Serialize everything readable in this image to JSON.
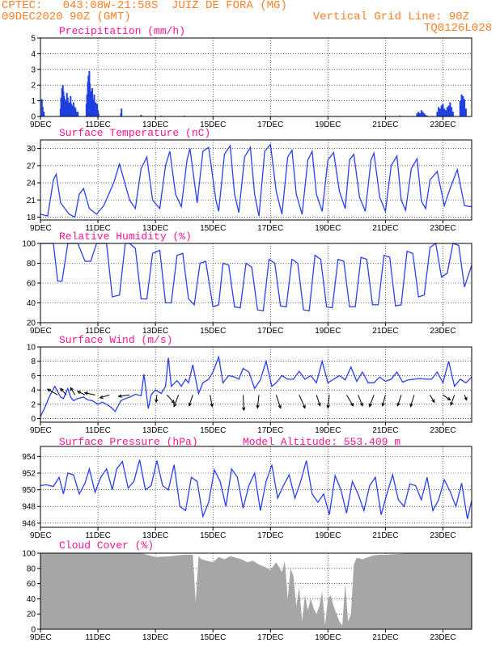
{
  "header": {
    "left_line1": "CPTEC:   043:08W-21:58S  JUIZ DE FORA (MG)",
    "left_line2": "09DEC2020 90Z (GMT)",
    "right_line1": "Vertical Grid Line: 90Z",
    "right_line2": "TQ0126L028"
  },
  "colors": {
    "header": "#ff7f27",
    "panel_title": "#ff1493",
    "series": "#2a3ff0",
    "precip_bar": "#1f3fe0",
    "cloud_fill": "#a6a6a6",
    "wind_arrow": "#000000"
  },
  "x_axis": {
    "tick_labels": [
      "9DEC",
      "11DEC",
      "13DEC",
      "15DEC",
      "17DEC",
      "19DEC",
      "21DEC",
      "23DEC"
    ],
    "tick_days": [
      0,
      2,
      4,
      6,
      8,
      10,
      12,
      14
    ],
    "range_days": [
      0,
      15
    ],
    "grid": true
  },
  "chart_data": [
    {
      "type": "bar",
      "title": "Precipitation (mm/h)",
      "ylim": [
        0,
        5
      ],
      "y_ticks": [
        0,
        1,
        2,
        3,
        4,
        5
      ],
      "x": [
        0.05,
        0.08,
        0.12,
        0.7,
        0.72,
        0.75,
        0.78,
        0.8,
        0.82,
        0.85,
        0.87,
        0.9,
        0.92,
        0.95,
        0.97,
        1.0,
        1.02,
        1.05,
        1.07,
        1.1,
        1.12,
        1.15,
        1.17,
        1.2,
        1.22,
        1.25,
        1.28,
        1.3,
        1.6,
        1.62,
        1.65,
        1.67,
        1.7,
        1.72,
        1.75,
        1.77,
        1.8,
        1.82,
        1.85,
        1.87,
        1.9,
        1.92,
        1.95,
        1.97,
        2.0,
        2.02,
        2.8,
        2.82,
        3.5,
        4.2,
        5.0,
        12.5,
        13.1,
        13.15,
        13.2,
        13.25,
        13.3,
        13.35,
        13.4,
        13.45,
        13.8,
        13.85,
        13.9,
        13.95,
        14.0,
        14.05,
        14.1,
        14.15,
        14.2,
        14.25,
        14.3,
        14.35,
        14.6,
        14.65,
        14.7,
        14.75,
        14.8
      ],
      "values": [
        1.1,
        0.6,
        0.3,
        0.5,
        1.2,
        1.8,
        2.0,
        1.6,
        1.3,
        1.1,
        0.8,
        1.0,
        1.5,
        1.2,
        0.9,
        0.6,
        0.9,
        1.3,
        0.8,
        0.5,
        0.7,
        0.9,
        0.4,
        0.6,
        0.5,
        0.3,
        0.2,
        0.3,
        0.8,
        1.4,
        2.2,
        2.6,
        2.9,
        2.1,
        1.6,
        1.3,
        1.8,
        1.1,
        0.9,
        1.4,
        0.7,
        0.9,
        0.5,
        0.8,
        0.4,
        0.2,
        0.2,
        0.5,
        0.1,
        0.05,
        0.05,
        0.05,
        0.2,
        0.3,
        0.2,
        0.4,
        0.3,
        0.2,
        0.1,
        0.05,
        0.3,
        0.6,
        0.5,
        0.7,
        0.8,
        0.5,
        0.4,
        0.6,
        0.7,
        0.9,
        0.6,
        0.3,
        1.0,
        1.4,
        1.3,
        1.1,
        0.5
      ]
    },
    {
      "type": "line",
      "title": "Surface Temperature (nC)",
      "ylim": [
        17.5,
        31.5
      ],
      "y_ticks": [
        18,
        21,
        24,
        27,
        30
      ],
      "x": [
        0,
        0.25,
        0.45,
        0.55,
        0.7,
        1.0,
        1.2,
        1.35,
        1.5,
        1.7,
        1.95,
        2.2,
        2.55,
        2.75,
        3.1,
        3.3,
        3.5,
        3.7,
        3.9,
        4.15,
        4.35,
        4.5,
        4.7,
        4.9,
        5.1,
        5.2,
        5.45,
        5.65,
        5.85,
        6.1,
        6.2,
        6.4,
        6.6,
        6.75,
        6.9,
        7.1,
        7.3,
        7.45,
        7.6,
        7.8,
        8.0,
        8.2,
        8.4,
        8.6,
        8.75,
        8.9,
        9.1,
        9.3,
        9.45,
        9.6,
        9.8,
        10.0,
        10.2,
        10.4,
        10.6,
        10.75,
        10.9,
        11.1,
        11.3,
        11.5,
        11.6,
        11.8,
        12.0,
        12.2,
        12.4,
        12.55,
        12.7,
        12.9,
        13.1,
        13.25,
        13.4,
        13.55,
        13.8,
        14.05,
        14.25,
        14.5,
        14.75,
        15.0
      ],
      "series": [
        {
          "values": [
            18.5,
            18.2,
            24.5,
            25.5,
            20.5,
            18.5,
            18.0,
            22.0,
            23.0,
            19.5,
            18.5,
            20.0,
            24.0,
            27.3,
            21.0,
            19.5,
            26.5,
            28.5,
            21.0,
            19.5,
            27.0,
            29.5,
            22.0,
            19.8,
            28.0,
            30.0,
            20.5,
            29.5,
            30.2,
            21.0,
            19.0,
            29.0,
            30.5,
            22.0,
            18.8,
            28.5,
            30.2,
            22.0,
            18.2,
            29.5,
            30.7,
            22.5,
            18.5,
            28.5,
            29.7,
            22.0,
            18.5,
            28.0,
            29.5,
            22.0,
            19.0,
            28.0,
            29.3,
            22.5,
            19.5,
            28.0,
            29.0,
            21.5,
            19.0,
            28.0,
            29.2,
            21.5,
            19.0,
            27.0,
            28.7,
            21.0,
            19.2,
            26.5,
            28.2,
            20.8,
            19.5,
            24.5,
            26.0,
            20.0,
            23.0,
            26.3,
            20.0,
            19.8
          ]
        }
      ]
    },
    {
      "type": "line",
      "title": "Relative Humidity (%)",
      "ylim": [
        20,
        100
      ],
      "y_ticks": [
        20,
        40,
        60,
        80,
        100
      ],
      "x": [
        0,
        0.25,
        0.45,
        0.6,
        0.75,
        0.95,
        1.1,
        1.3,
        1.55,
        1.75,
        1.95,
        2.1,
        2.3,
        2.5,
        2.75,
        2.95,
        3.1,
        3.3,
        3.5,
        3.7,
        3.9,
        4.15,
        4.35,
        4.55,
        4.75,
        4.95,
        5.15,
        5.35,
        5.55,
        5.75,
        6.0,
        6.2,
        6.35,
        6.55,
        6.75,
        6.95,
        7.15,
        7.35,
        7.55,
        7.75,
        7.95,
        8.15,
        8.35,
        8.55,
        8.75,
        8.95,
        9.15,
        9.35,
        9.55,
        9.75,
        9.95,
        10.15,
        10.35,
        10.55,
        10.75,
        10.95,
        11.15,
        11.35,
        11.55,
        11.75,
        11.95,
        12.15,
        12.35,
        12.55,
        12.75,
        12.95,
        13.15,
        13.35,
        13.55,
        13.75,
        13.95,
        14.15,
        14.35,
        14.55,
        14.75,
        15.0
      ],
      "series": [
        {
          "values": [
            100,
            100,
            100,
            62,
            62,
            100,
            100,
            100,
            82,
            82,
            100,
            100,
            100,
            46,
            48,
            100,
            100,
            95,
            44,
            44,
            90,
            93,
            40,
            40,
            88,
            90,
            44,
            38,
            80,
            82,
            36,
            38,
            80,
            78,
            36,
            35,
            80,
            76,
            33,
            32,
            84,
            80,
            37,
            36,
            84,
            80,
            33,
            32,
            88,
            84,
            36,
            35,
            84,
            82,
            36,
            36,
            86,
            84,
            38,
            38,
            88,
            86,
            37,
            38,
            92,
            90,
            46,
            48,
            96,
            100,
            66,
            70,
            100,
            98,
            56,
            78
          ]
        }
      ]
    },
    {
      "type": "line",
      "title": "Surface Wind (m/s)",
      "ylim": [
        -0.5,
        10
      ],
      "y_ticks": [
        0,
        2,
        4,
        6,
        8,
        10
      ],
      "x": [
        0,
        0.15,
        0.3,
        0.5,
        0.7,
        0.8,
        0.95,
        1.05,
        1.15,
        1.3,
        1.5,
        1.65,
        1.8,
        2.0,
        2.15,
        2.3,
        2.45,
        2.6,
        2.8,
        2.95,
        3.1,
        3.3,
        3.5,
        3.6,
        3.75,
        3.85,
        4.0,
        4.2,
        4.35,
        4.45,
        4.55,
        4.75,
        4.9,
        5.05,
        5.15,
        5.3,
        5.5,
        5.65,
        5.85,
        6.0,
        6.2,
        6.35,
        6.55,
        6.75,
        6.9,
        7.05,
        7.25,
        7.45,
        7.65,
        7.85,
        8.05,
        8.2,
        8.4,
        8.6,
        8.8,
        9.0,
        9.2,
        9.4,
        9.6,
        9.8,
        10.0,
        10.2,
        10.4,
        10.6,
        10.8,
        11.0,
        11.2,
        11.4,
        11.6,
        11.8,
        12.0,
        12.2,
        12.4,
        12.6,
        12.8,
        13.0,
        13.2,
        13.4,
        13.6,
        13.8,
        14.0,
        14.2,
        14.4,
        14.6,
        14.8,
        15.0
      ],
      "series": [
        {
          "values": [
            0.3,
            1.5,
            3.0,
            4.5,
            3.0,
            2.8,
            4.2,
            3.0,
            2.5,
            2.8,
            3.0,
            2.6,
            2.5,
            2.0,
            2.3,
            2.0,
            1.6,
            1.0,
            2.5,
            2.8,
            3.0,
            3.4,
            3.2,
            6.2,
            1.4,
            3.3,
            4.0,
            3.5,
            4.5,
            8.5,
            4.5,
            5.3,
            4.5,
            5.5,
            5.0,
            7.5,
            3.5,
            5.0,
            5.5,
            6.5,
            8.6,
            5.0,
            6.0,
            5.8,
            5.5,
            7.0,
            6.5,
            4.2,
            5.4,
            8.0,
            4.5,
            5.0,
            6.0,
            5.5,
            5.5,
            6.6,
            5.5,
            6.0,
            5.0,
            8.0,
            5.0,
            5.5,
            6.0,
            5.4,
            7.2,
            5.2,
            6.5,
            5.0,
            5.0,
            5.8,
            5.2,
            5.5,
            6.5,
            5.1,
            5.4,
            5.5,
            5.6,
            5.5,
            5.5,
            6.5,
            5.0,
            8.0,
            4.5,
            5.5,
            5.0,
            5.8
          ]
        }
      ],
      "arrows_x": [
        0.6,
        0.9,
        1.2,
        1.55,
        1.9,
        2.4,
        3.1,
        4.05,
        4.4,
        4.8,
        5.3,
        5.9,
        7.05,
        7.6,
        8.2,
        9.0,
        9.6,
        10.05,
        10.65,
        11.05,
        11.6,
        12.0,
        12.55,
        13.0,
        13.55,
        14.0,
        14.4,
        14.75
      ],
      "arrows_u": [
        -1.4,
        -0.8,
        -0.6,
        -1.0,
        -1.4,
        -1.3,
        -1.5,
        -0.1,
        1.0,
        -0.6,
        -0.5,
        0.3,
        0.1,
        -0.2,
        0.6,
        0.8,
        0.5,
        -0.2,
        0.9,
        0.6,
        -0.6,
        -0.4,
        -0.5,
        -0.5,
        0.6,
        1.0,
        -0.5,
        0.3
      ],
      "arrows_v": [
        0.8,
        0.9,
        1.0,
        0.5,
        0.3,
        -0.4,
        -0.2,
        -1.0,
        -1.1,
        -1.6,
        -1.5,
        -1.6,
        -2.1,
        -1.8,
        -1.8,
        -1.8,
        -1.5,
        -1.8,
        -1.5,
        -1.5,
        -1.6,
        -1.5,
        -1.5,
        -1.6,
        -1.0,
        -0.7,
        -1.4,
        -0.7
      ]
    },
    {
      "type": "line",
      "title": "Surface Pressure (hPa)",
      "annotation": "Model Altitude: 553.409 m",
      "ylim": [
        945.5,
        955.2
      ],
      "y_ticks": [
        946,
        948,
        950,
        952,
        954
      ],
      "x": [
        0,
        0.2,
        0.45,
        0.65,
        0.8,
        0.95,
        1.15,
        1.35,
        1.55,
        1.7,
        1.9,
        2.1,
        2.3,
        2.5,
        2.65,
        2.85,
        3.05,
        3.25,
        3.45,
        3.65,
        3.85,
        4.05,
        4.25,
        4.45,
        4.65,
        4.85,
        5.05,
        5.25,
        5.45,
        5.65,
        5.85,
        6.05,
        6.25,
        6.45,
        6.65,
        6.85,
        7.05,
        7.25,
        7.45,
        7.65,
        7.85,
        8.05,
        8.25,
        8.45,
        8.65,
        8.85,
        9.05,
        9.25,
        9.45,
        9.65,
        9.85,
        10.05,
        10.25,
        10.45,
        10.65,
        10.85,
        11.05,
        11.25,
        11.45,
        11.65,
        11.85,
        12.05,
        12.25,
        12.45,
        12.65,
        12.85,
        13.05,
        13.25,
        13.45,
        13.65,
        13.85,
        14.05,
        14.25,
        14.45,
        14.65,
        14.85,
        15.0
      ],
      "series": [
        {
          "values": [
            950.5,
            950.6,
            950.4,
            951.5,
            949.5,
            952.0,
            951.8,
            949.5,
            950.8,
            952.5,
            949.7,
            951.5,
            952.5,
            950.0,
            952.5,
            953.4,
            950.2,
            951.0,
            953.6,
            950.0,
            950.5,
            953.5,
            950.5,
            950.0,
            953.0,
            948.0,
            947.5,
            951.5,
            951.0,
            946.8,
            948.5,
            952.4,
            951.0,
            948.0,
            952.5,
            951.5,
            947.8,
            950.5,
            952.0,
            947.5,
            951.0,
            953.0,
            949.0,
            950.5,
            951.8,
            949.0,
            951.0,
            953.5,
            949.5,
            948.5,
            949.5,
            947.0,
            951.7,
            950.0,
            947.2,
            951.0,
            949.5,
            947.5,
            950.5,
            951.5,
            947.0,
            949.5,
            951.8,
            948.8,
            948.0,
            950.7,
            950.5,
            948.8,
            951.5,
            947.5,
            948.8,
            951.2,
            949.8,
            948.0,
            950.8,
            946.5,
            948.7
          ]
        }
      ]
    },
    {
      "type": "area",
      "title": "Cloud Cover (%)",
      "ylim": [
        0,
        100
      ],
      "y_ticks": [
        0,
        20,
        40,
        60,
        80,
        100
      ],
      "x": [
        0,
        0.5,
        1.0,
        1.5,
        2.0,
        2.5,
        3.0,
        3.5,
        4.0,
        4.5,
        5.0,
        5.3,
        5.4,
        5.5,
        5.6,
        5.8,
        6.0,
        6.2,
        6.4,
        6.6,
        6.8,
        7.0,
        7.2,
        7.4,
        7.6,
        7.8,
        8.0,
        8.2,
        8.4,
        8.5,
        8.6,
        8.7,
        8.8,
        8.9,
        9.0,
        9.1,
        9.2,
        9.3,
        9.4,
        9.5,
        9.6,
        9.7,
        9.8,
        9.9,
        10.0,
        10.1,
        10.2,
        10.3,
        10.4,
        10.5,
        10.6,
        10.7,
        10.8,
        10.9,
        11.0,
        11.2,
        11.4,
        11.6,
        11.8,
        12.0,
        12.5,
        13.0,
        13.5,
        14.0,
        14.5,
        15.0
      ],
      "values": [
        100,
        100,
        100,
        100,
        100,
        100,
        100,
        100,
        95,
        96,
        98,
        98,
        35,
        96,
        92,
        90,
        88,
        95,
        92,
        96,
        94,
        92,
        88,
        90,
        85,
        82,
        78,
        88,
        75,
        90,
        40,
        80,
        70,
        30,
        55,
        10,
        45,
        25,
        40,
        28,
        20,
        30,
        50,
        5,
        40,
        45,
        30,
        20,
        10,
        5,
        60,
        10,
        20,
        85,
        94,
        92,
        95,
        97,
        98,
        98,
        99,
        100,
        100,
        100,
        100,
        100
      ]
    }
  ]
}
